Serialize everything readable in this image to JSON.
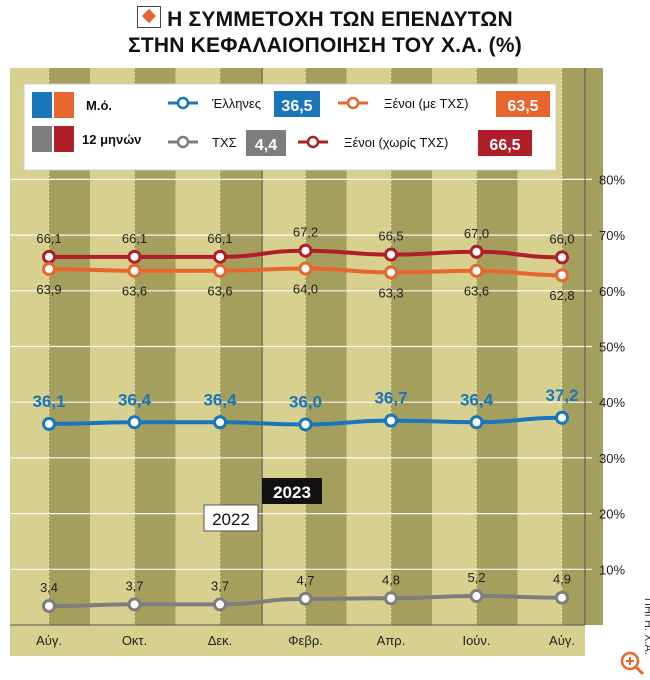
{
  "title_line1": "Η ΣΥΜΜΕΤΟΧΗ ΤΩΝ ΕΠΕΝΔΥΤΩΝ",
  "title_line2": "ΣΤΗΝ ΚΕΦΑΛΑΙΟΠΟΙΗΣΗ ΤΟΥ Χ.Α. (%)",
  "source": "ΠΗΓΗ: Χ.Α.",
  "legend": {
    "avg_label": "Μ.ό.",
    "months12_label": "12 μηνών",
    "entries": [
      {
        "name": "Έλληνες",
        "avg": "36,5",
        "color": "#1b75bb"
      },
      {
        "name": "Ξένοι (με ΤΧΣ)",
        "avg": "63,5",
        "color": "#e8662e"
      },
      {
        "name": "ΤΧΣ",
        "avg": "4,4",
        "color": "#7d7d7d"
      },
      {
        "name": "Ξένοι (χωρίς ΤΧΣ)",
        "avg": "66,5",
        "color": "#b01e2a"
      }
    ],
    "swatches": {
      "avg": [
        "#1b75bb",
        "#e8662e",
        "#7d7d7d",
        "#b01e2a"
      ]
    }
  },
  "colors": {
    "background": "#d7d08e",
    "band_dark": "#a59f5e",
    "gridline": "#ffffff",
    "axis_bottom": "#c7c08a"
  },
  "chart_data": {
    "type": "line",
    "categories": [
      "Αύγ.",
      "Οκτ.",
      "Δεκ.",
      "Φεβρ.",
      "Απρ.",
      "Ιούν.",
      "Αύγ."
    ],
    "year_labels": [
      "2022",
      "2023"
    ],
    "ylim": [
      0,
      80
    ],
    "yticks": [
      10,
      20,
      30,
      40,
      50,
      60,
      70,
      80
    ],
    "ytick_labels": [
      "10%",
      "20%",
      "30%",
      "40%",
      "50%",
      "60%",
      "70%",
      "80%"
    ],
    "grid": true,
    "series": [
      {
        "name": "Ξένοι (χωρίς ΤΧΣ)",
        "color": "#b01e2a",
        "values": [
          66.1,
          66.1,
          66.1,
          67.2,
          66.5,
          67.0,
          66.0
        ],
        "labels": [
          "66,1",
          "66,1",
          "66,1",
          "67,2",
          "66,5",
          "67,0",
          "66,0"
        ],
        "label_pos": "above"
      },
      {
        "name": "Ξένοι (με ΤΧΣ)",
        "color": "#e8662e",
        "values": [
          63.9,
          63.6,
          63.6,
          64.0,
          63.3,
          63.6,
          62.8
        ],
        "labels": [
          "63,9",
          "63,6",
          "63,6",
          "64,0",
          "63,3",
          "63,6",
          "62,8"
        ],
        "label_pos": "below"
      },
      {
        "name": "Έλληνες",
        "color": "#1b75bb",
        "values": [
          36.1,
          36.4,
          36.4,
          36.0,
          36.7,
          36.4,
          37.2
        ],
        "labels": [
          "36,1",
          "36,4",
          "36,4",
          "36,0",
          "36,7",
          "36,4",
          "37,2"
        ],
        "label_pos": "above-big"
      },
      {
        "name": "ΤΧΣ",
        "color": "#7d7d7d",
        "values": [
          3.4,
          3.7,
          3.7,
          4.7,
          4.8,
          5.2,
          4.9
        ],
        "labels": [
          "3,4",
          "3,7",
          "3,7",
          "4,7",
          "4,8",
          "5,2",
          "4,9"
        ],
        "label_pos": "above"
      }
    ]
  }
}
